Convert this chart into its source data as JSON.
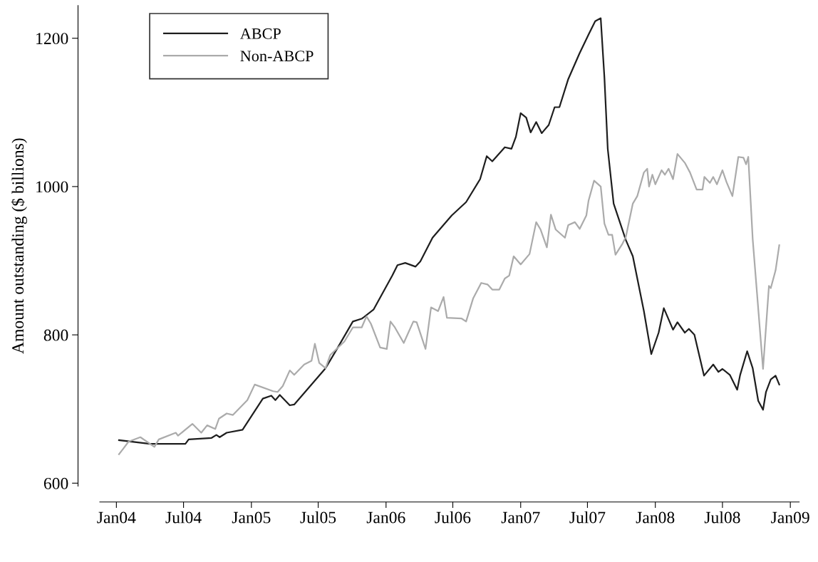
{
  "chart_data": {
    "type": "line",
    "ylabel": "Amount outstanding ($ billions)",
    "series": [
      {
        "name": "ABCP",
        "color": "#1e1e1e",
        "x": [
          "2004-01-08",
          "2004-04-01",
          "2004-07-06",
          "2004-07-15",
          "2004-09-15",
          "2004-09-28",
          "2004-10-07",
          "2004-10-26",
          "2004-12-08",
          "2005-02-01",
          "2005-02-24",
          "2005-03-07",
          "2005-03-19",
          "2005-04-15",
          "2005-04-27",
          "2005-07-21",
          "2005-08-21",
          "2005-10-03",
          "2005-10-28",
          "2005-11-28",
          "2006-01-18",
          "2006-02-01",
          "2006-02-22",
          "2006-03-22",
          "2006-04-04",
          "2006-05-07",
          "2006-05-19",
          "2006-06-28",
          "2006-08-06",
          "2006-09-13",
          "2006-10-01",
          "2006-10-16",
          "2006-11-19",
          "2006-12-07",
          "2006-12-19",
          "2007-01-01",
          "2007-01-16",
          "2007-01-28",
          "2007-02-12",
          "2007-02-27",
          "2007-03-18",
          "2007-04-03",
          "2007-04-16",
          "2007-05-10",
          "2007-06-09",
          "2007-07-04",
          "2007-07-22",
          "2007-08-06",
          "2007-08-16",
          "2007-08-25",
          "2007-09-10",
          "2007-10-13",
          "2007-11-01",
          "2007-12-01",
          "2007-12-21",
          "2008-01-10",
          "2008-01-24",
          "2008-02-18",
          "2008-03-01",
          "2008-03-21",
          "2008-04-01",
          "2008-04-16",
          "2008-05-12",
          "2008-06-06",
          "2008-06-20",
          "2008-07-01",
          "2008-07-21",
          "2008-08-10",
          "2008-08-18",
          "2008-09-06",
          "2008-09-21",
          "2008-10-06",
          "2008-10-19",
          "2008-10-27",
          "2008-11-09",
          "2008-11-22",
          "2008-12-02"
        ],
        "values": [
          658,
          653,
          653,
          659,
          661,
          665,
          662,
          668,
          672,
          714,
          718,
          712,
          719,
          705,
          706,
          755,
          781,
          818,
          822,
          834,
          880,
          894,
          897,
          892,
          899,
          931,
          938,
          961,
          979,
          1010,
          1041,
          1034,
          1053,
          1051,
          1067,
          1099,
          1093,
          1073,
          1087,
          1072,
          1083,
          1107,
          1107,
          1145,
          1179,
          1205,
          1223,
          1227,
          1147,
          1051,
          977,
          928,
          906,
          832,
          774,
          803,
          836,
          807,
          817,
          803,
          808,
          800,
          745,
          760,
          750,
          754,
          746,
          726,
          746,
          778,
          755,
          711,
          699,
          723,
          740,
          745,
          733
        ]
      },
      {
        "name": "Non-ABCP",
        "color": "#ababab",
        "x": [
          "2004-01-08",
          "2004-01-19",
          "2004-02-03",
          "2004-03-06",
          "2004-04-13",
          "2004-04-25",
          "2004-06-10",
          "2004-06-16",
          "2004-07-25",
          "2004-08-18",
          "2004-09-03",
          "2004-09-25",
          "2004-10-05",
          "2004-10-26",
          "2004-11-12",
          "2004-12-21",
          "2005-01-10",
          "2005-03-01",
          "2005-03-13",
          "2005-03-27",
          "2005-04-15",
          "2005-04-27",
          "2005-05-24",
          "2005-06-13",
          "2005-06-22",
          "2005-07-04",
          "2005-07-21",
          "2005-08-03",
          "2005-09-10",
          "2005-10-03",
          "2005-10-27",
          "2005-11-09",
          "2005-11-21",
          "2005-12-16",
          "2006-01-03",
          "2006-01-13",
          "2006-01-25",
          "2006-02-18",
          "2006-03-16",
          "2006-03-25",
          "2006-04-18",
          "2006-05-03",
          "2006-05-22",
          "2006-06-06",
          "2006-06-15",
          "2006-07-25",
          "2006-08-06",
          "2006-08-25",
          "2006-09-16",
          "2006-10-03",
          "2006-10-16",
          "2006-11-04",
          "2006-11-19",
          "2006-12-01",
          "2006-12-13",
          "2007-01-01",
          "2007-01-25",
          "2007-02-12",
          "2007-02-24",
          "2007-03-13",
          "2007-03-24",
          "2007-04-06",
          "2007-05-01",
          "2007-05-10",
          "2007-05-28",
          "2007-06-10",
          "2007-06-28",
          "2007-07-04",
          "2007-07-19",
          "2007-08-06",
          "2007-08-16",
          "2007-08-27",
          "2007-09-06",
          "2007-09-15",
          "2007-10-04",
          "2007-10-13",
          "2007-11-01",
          "2007-11-13",
          "2007-12-01",
          "2007-12-10",
          "2007-12-15",
          "2007-12-24",
          "2008-01-01",
          "2008-01-18",
          "2008-01-27",
          "2008-02-06",
          "2008-02-18",
          "2008-03-01",
          "2008-03-21",
          "2008-04-04",
          "2008-04-22",
          "2008-05-08",
          "2008-05-13",
          "2008-05-28",
          "2008-06-06",
          "2008-06-16",
          "2008-07-01",
          "2008-07-12",
          "2008-07-28",
          "2008-08-13",
          "2008-08-27",
          "2008-09-03",
          "2008-09-09",
          "2008-09-21",
          "2008-10-19",
          "2008-11-04",
          "2008-11-09",
          "2008-11-22",
          "2008-12-02"
        ],
        "values": [
          639,
          646,
          656,
          662,
          649,
          659,
          668,
          664,
          680,
          668,
          678,
          673,
          687,
          694,
          692,
          712,
          733,
          724,
          723,
          731,
          752,
          746,
          760,
          765,
          788,
          762,
          755,
          773,
          791,
          810,
          810,
          825,
          815,
          783,
          781,
          818,
          810,
          789,
          818,
          817,
          781,
          837,
          832,
          851,
          823,
          822,
          818,
          849,
          870,
          868,
          861,
          861,
          876,
          880,
          906,
          895,
          909,
          952,
          942,
          918,
          962,
          942,
          931,
          948,
          952,
          943,
          961,
          981,
          1008,
          1000,
          950,
          935,
          935,
          908,
          923,
          932,
          977,
          987,
          1019,
          1024,
          1000,
          1016,
          1003,
          1022,
          1016,
          1024,
          1010,
          1044,
          1032,
          1019,
          996,
          996,
          1013,
          1005,
          1013,
          1003,
          1022,
          1006,
          987,
          1040,
          1039,
          1030,
          1040,
          929,
          754,
          866,
          863,
          887,
          921
        ]
      }
    ],
    "xlim": [
      "2003-11-17",
      "2009-01-25"
    ],
    "xticks": [
      {
        "value": "2004-01-01",
        "label": "Jan04"
      },
      {
        "value": "2004-07-01",
        "label": "Jul04"
      },
      {
        "value": "2005-01-01",
        "label": "Jan05"
      },
      {
        "value": "2005-07-01",
        "label": "Jul05"
      },
      {
        "value": "2006-01-01",
        "label": "Jan06"
      },
      {
        "value": "2006-07-01",
        "label": "Jul06"
      },
      {
        "value": "2007-01-01",
        "label": "Jan07"
      },
      {
        "value": "2007-07-01",
        "label": "Jul07"
      },
      {
        "value": "2008-01-01",
        "label": "Jan08"
      },
      {
        "value": "2008-07-01",
        "label": "Jul08"
      },
      {
        "value": "2009-01-01",
        "label": "Jan09"
      }
    ],
    "ylim": [
      596,
      1244
    ],
    "yticks": [
      600,
      800,
      1000,
      1200
    ],
    "grid": false,
    "legend": "top left",
    "line_style": "solid",
    "marker": "none"
  }
}
